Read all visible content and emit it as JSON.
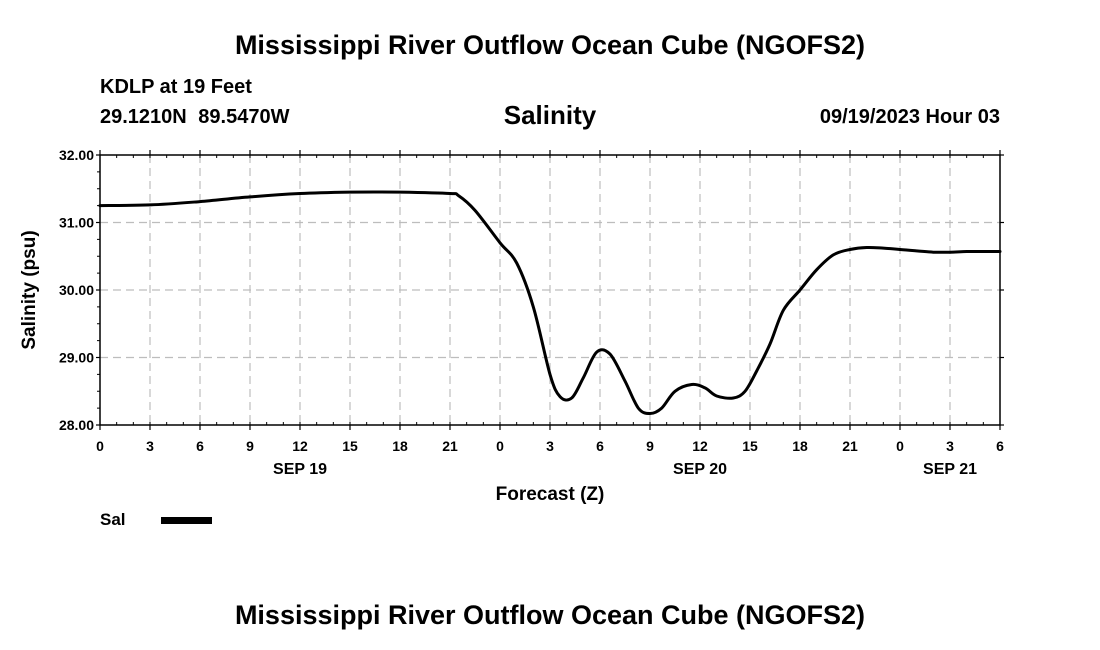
{
  "header": {
    "title": "Mississippi River Outflow Ocean Cube (NGOFS2)",
    "station": "KDLP at 19 Feet",
    "coords": "29.1210N  89.5470W",
    "chart_title": "Salinity",
    "datetime": "09/19/2023 Hour 03"
  },
  "legend": {
    "label": "Sal"
  },
  "footer": {
    "title": "Mississippi River Outflow Ocean Cube (NGOFS2)"
  },
  "chart_data": {
    "type": "line",
    "title": "Salinity",
    "xlabel": "Forecast (Z)",
    "ylabel": "Salinity (psu)",
    "ylim": [
      28,
      32
    ],
    "xlim": [
      0,
      54
    ],
    "x_unit": "hours since Sep 19 00Z",
    "yticks": [
      "32.00",
      "31.00",
      "30.00",
      "29.00",
      "28.00"
    ],
    "ytick_values": [
      32,
      31,
      30,
      29,
      28
    ],
    "xticks": [
      {
        "hour": 0,
        "label": "0"
      },
      {
        "hour": 3,
        "label": "3"
      },
      {
        "hour": 6,
        "label": "6"
      },
      {
        "hour": 9,
        "label": "9"
      },
      {
        "hour": 12,
        "label": "12"
      },
      {
        "hour": 15,
        "label": "15"
      },
      {
        "hour": 18,
        "label": "18"
      },
      {
        "hour": 21,
        "label": "21"
      },
      {
        "hour": 24,
        "label": "0"
      },
      {
        "hour": 27,
        "label": "3"
      },
      {
        "hour": 30,
        "label": "6"
      },
      {
        "hour": 33,
        "label": "9"
      },
      {
        "hour": 36,
        "label": "12"
      },
      {
        "hour": 39,
        "label": "15"
      },
      {
        "hour": 42,
        "label": "18"
      },
      {
        "hour": 45,
        "label": "21"
      },
      {
        "hour": 48,
        "label": "0"
      },
      {
        "hour": 51,
        "label": "3"
      },
      {
        "hour": 54,
        "label": "6"
      }
    ],
    "dates": [
      {
        "hour": 12,
        "label": "SEP 19"
      },
      {
        "hour": 36,
        "label": "SEP 20"
      },
      {
        "hour": 51,
        "label": "SEP 21"
      }
    ],
    "grid": true,
    "series": [
      {
        "name": "Sal",
        "color": "#000000",
        "x": [
          0,
          3,
          6,
          9,
          12,
          15,
          18,
          21,
          21.5,
          22.5,
          24,
          25,
          26,
          27,
          27.6,
          28.3,
          29,
          29.8,
          30.6,
          31.5,
          32.3,
          33,
          33.7,
          34.5,
          35.5,
          36.3,
          37,
          38,
          38.7,
          39.4,
          40.2,
          41,
          42,
          43,
          44,
          45,
          46,
          47,
          48,
          49,
          50,
          51,
          52,
          53,
          54
        ],
        "values": [
          31.25,
          31.26,
          31.31,
          31.38,
          31.43,
          31.45,
          31.45,
          31.43,
          31.4,
          31.18,
          30.7,
          30.4,
          29.75,
          28.75,
          28.42,
          28.4,
          28.7,
          29.08,
          29.05,
          28.65,
          28.25,
          28.17,
          28.25,
          28.5,
          28.6,
          28.55,
          28.43,
          28.4,
          28.5,
          28.8,
          29.2,
          29.7,
          30.0,
          30.3,
          30.52,
          30.6,
          30.63,
          30.62,
          30.6,
          30.58,
          30.56,
          30.56,
          30.57,
          30.57,
          30.57
        ]
      }
    ]
  }
}
